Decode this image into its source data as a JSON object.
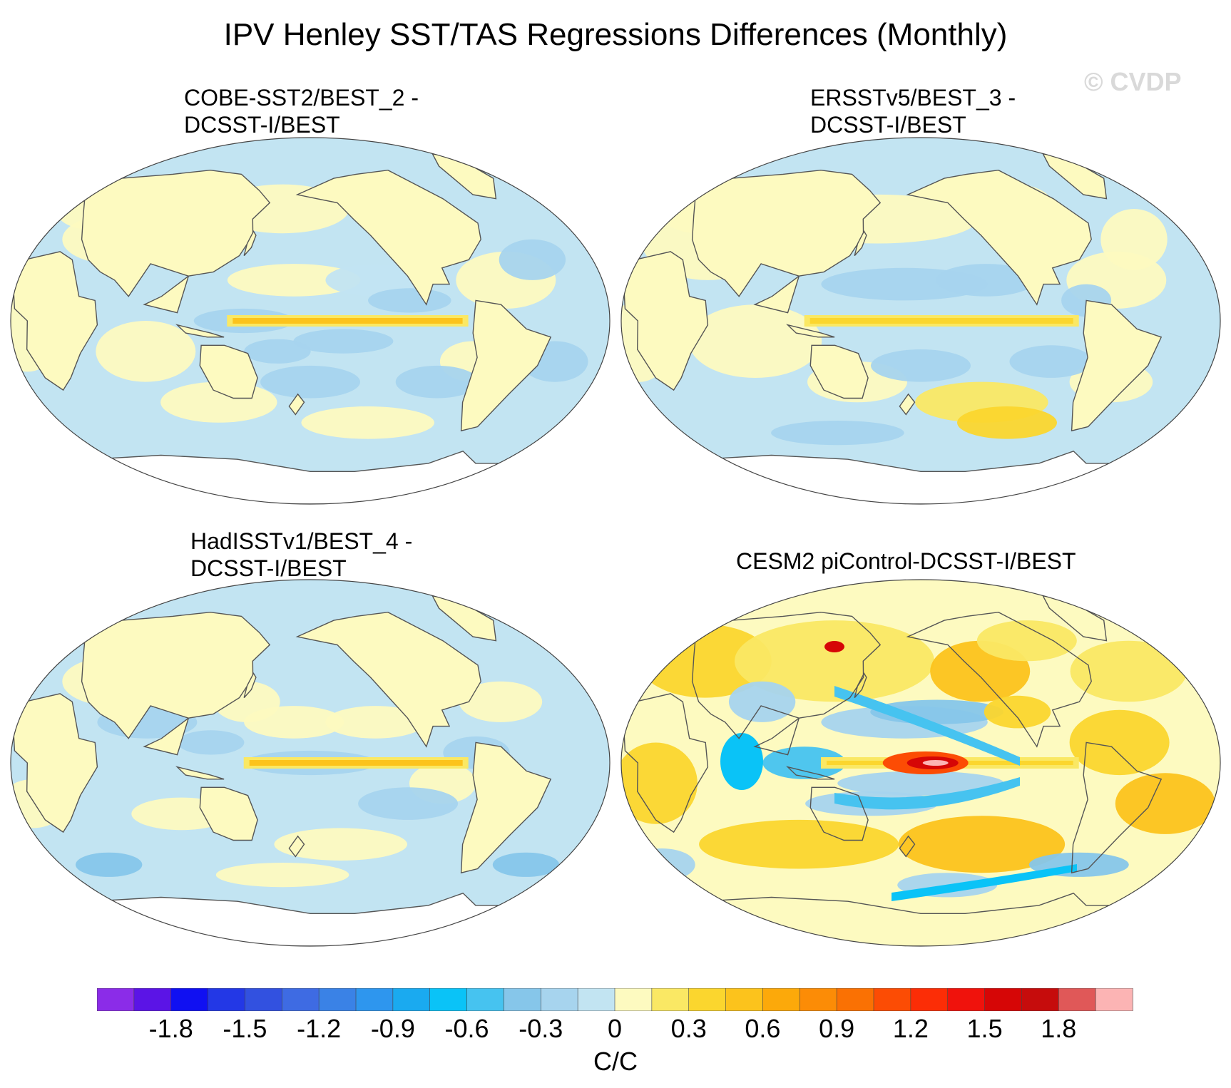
{
  "figure": {
    "title": "IPV Henley SST/TAS Regressions Differences (Monthly)",
    "watermark": "© CVDP"
  },
  "panels": [
    {
      "id": "p1",
      "line1": "COBE-SST2/BEST_2 -",
      "line2": "DCSST-I/BEST",
      "variant": 0
    },
    {
      "id": "p2",
      "line1": "ERSSTv5/BEST_3 -",
      "line2": "DCSST-I/BEST",
      "variant": 1
    },
    {
      "id": "p3",
      "line1": "HadISSTv1/BEST_4 -",
      "line2": "DCSST-I/BEST",
      "variant": 2
    },
    {
      "id": "p4",
      "line1": "CESM2 piControl-DCSST-I/BEST",
      "line2": "",
      "variant": 3
    }
  ],
  "colorbar": {
    "colors": [
      "#8b2ce8",
      "#5b14e6",
      "#1010f2",
      "#2338e6",
      "#3251e0",
      "#3e6be3",
      "#3a82e6",
      "#2e96ee",
      "#1aaaf0",
      "#0ac3f7",
      "#46c3f0",
      "#86c6ea",
      "#a7d4ee",
      "#c2e4f2",
      "#fdfac0",
      "#fae864",
      "#fbd62e",
      "#fcc31c",
      "#fca90a",
      "#fc8c06",
      "#fa7103",
      "#fc4c04",
      "#fc2d06",
      "#f0120c",
      "#d60606",
      "#c60c0c",
      "#e05858",
      "#fcb4b4"
    ],
    "tick_labels": [
      "-1.8",
      "-1.5",
      "-1.2",
      "-0.9",
      "-0.6",
      "-0.3",
      "0",
      "0.3",
      "0.6",
      "0.9",
      "1.2",
      "1.5",
      "1.8"
    ],
    "units": "C/C"
  }
}
